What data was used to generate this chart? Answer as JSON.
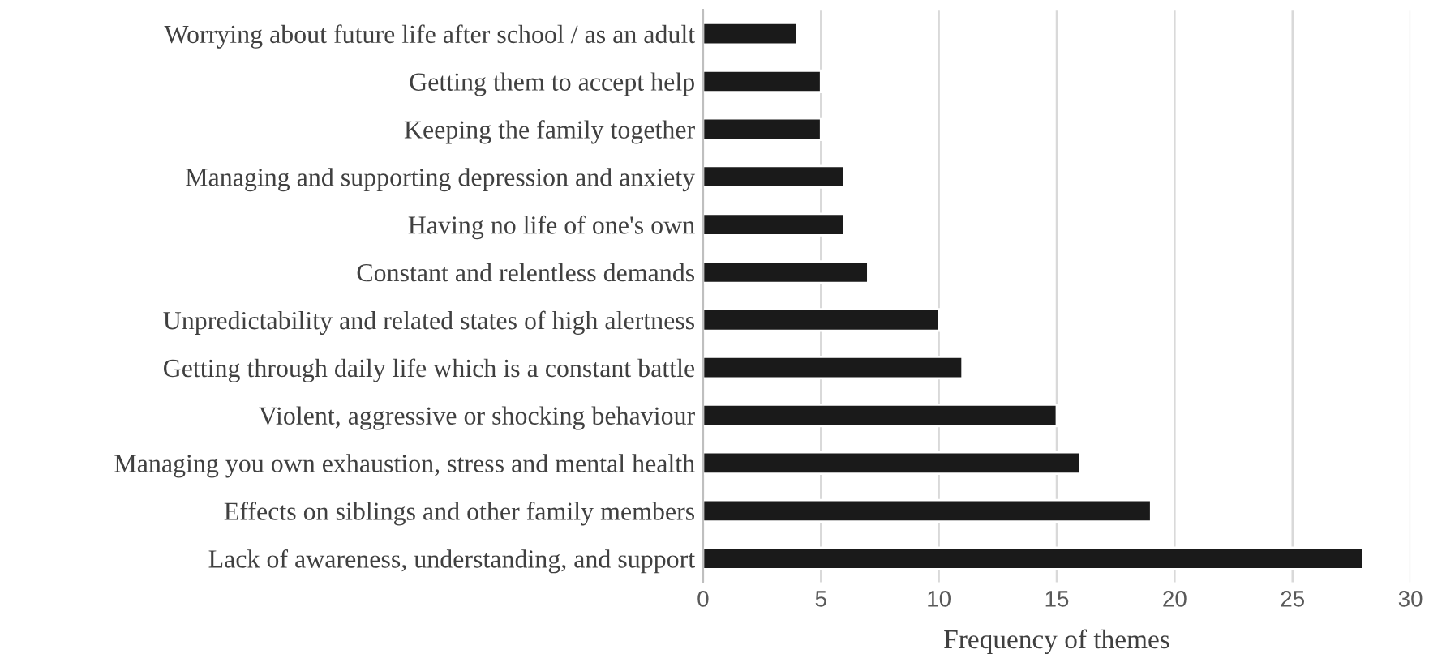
{
  "chart_data": {
    "type": "bar",
    "orientation": "horizontal",
    "xlabel": "Frequency of themes",
    "categories": [
      "Worrying about future life after school / as an adult",
      "Getting them to accept help",
      "Keeping the family together",
      "Managing and supporting depression and anxiety",
      "Having no life of one's own",
      "Constant and relentless demands",
      "Unpredictability and related states of high alertness",
      "Getting through daily life which is a constant battle",
      "Violent, aggressive or shocking behaviour",
      "Managing you own exhaustion, stress and mental health",
      "Effects on siblings and other family members",
      "Lack of awareness, understanding, and support"
    ],
    "values": [
      4,
      5,
      5,
      6,
      6,
      7,
      10,
      11,
      15,
      16,
      19,
      28
    ],
    "color": "#1a1a1a",
    "xlim": [
      0,
      30
    ],
    "xticks": [
      0,
      5,
      10,
      15,
      20,
      25,
      30
    ],
    "grid": "x",
    "legend": false
  }
}
